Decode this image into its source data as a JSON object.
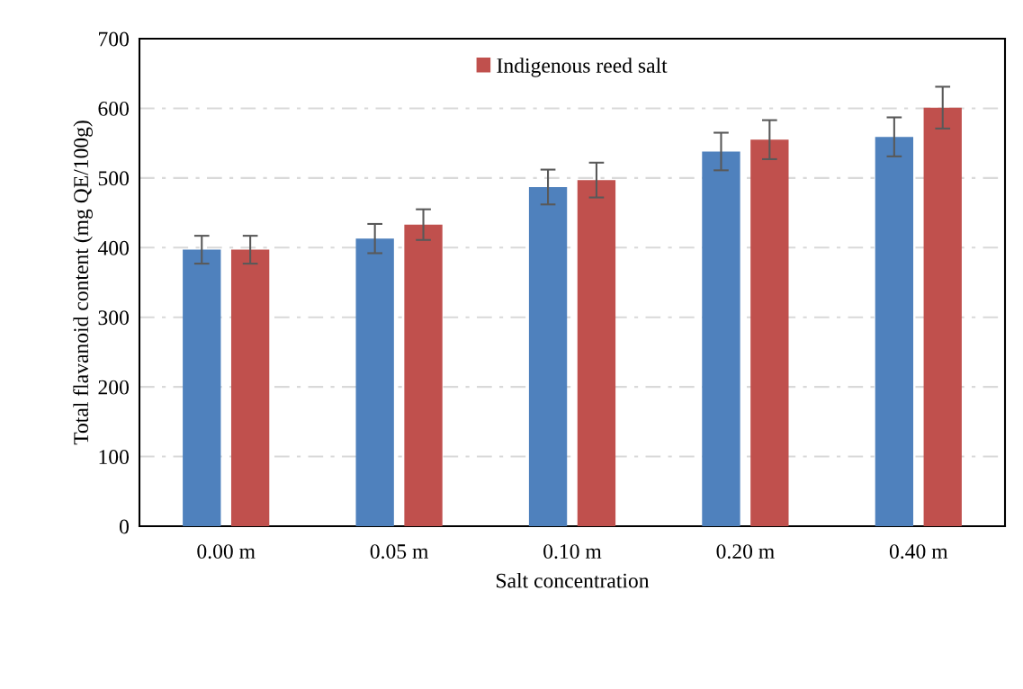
{
  "chart_data": {
    "type": "bar",
    "xlabel": "Salt concentration",
    "ylabel": "Total flavanoid content (mg QE/100g)",
    "categories": [
      "0.00 m",
      "0.05 m",
      "0.10 m",
      "0.20 m",
      "0.40 m"
    ],
    "series": [
      {
        "color": "#4f81bd",
        "values": [
          397,
          413,
          487,
          538,
          559
        ],
        "errors": [
          20,
          21,
          25,
          27,
          28
        ]
      },
      {
        "name": "Indigenous reed salt",
        "color": "#c0504d",
        "values": [
          397,
          433,
          497,
          555,
          601
        ],
        "errors": [
          20,
          22,
          25,
          28,
          30
        ]
      }
    ],
    "ylim": [
      0,
      700
    ],
    "yticks": [
      0,
      100,
      200,
      300,
      400,
      500,
      600,
      700
    ],
    "grid": "y",
    "legend": "top"
  }
}
